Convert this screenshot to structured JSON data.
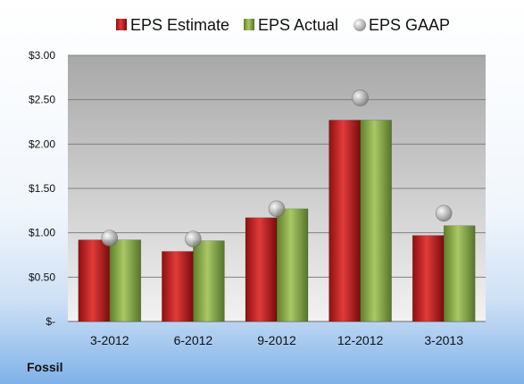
{
  "chart_data": {
    "type": "bar",
    "title": "Fossil",
    "categories": [
      "3-2012",
      "6-2012",
      "9-2012",
      "12-2012",
      "3-2013"
    ],
    "series": [
      {
        "name": "EPS Estimate",
        "values": [
          0.92,
          0.79,
          1.17,
          2.27,
          0.97
        ],
        "color": "#d42a2a"
      },
      {
        "name": "EPS Actual",
        "values": [
          0.92,
          0.91,
          1.27,
          2.27,
          1.08
        ],
        "color": "#8fb04a"
      }
    ],
    "scatter_series": {
      "name": "EPS GAAP",
      "values": [
        0.94,
        0.93,
        1.27,
        2.52,
        1.22
      ],
      "color": "#b0b0b0"
    },
    "yticks": [
      "$-",
      "$0.50",
      "$1.00",
      "$1.50",
      "$2.00",
      "$2.50",
      "$3.00"
    ],
    "ylim": [
      0,
      3
    ],
    "grid": true,
    "legend_position": "top"
  }
}
